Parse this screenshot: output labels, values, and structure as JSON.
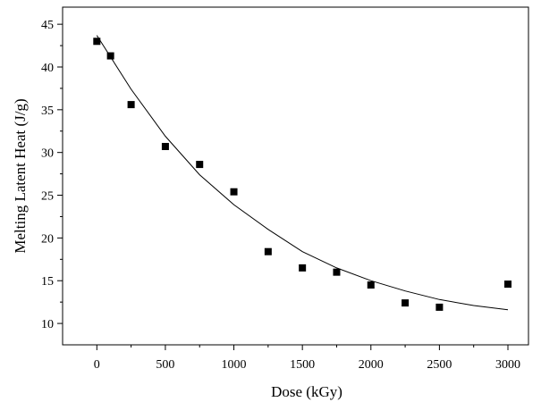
{
  "chart_data": {
    "type": "scatter",
    "title": "",
    "xlabel": "Dose (kGy)",
    "ylabel": "Melting Latent Heat (J/g)",
    "xlim": [
      -250,
      3150
    ],
    "ylim": [
      7.5,
      47
    ],
    "x_ticks": [
      0,
      500,
      1000,
      1500,
      2000,
      2500,
      3000
    ],
    "x_tick_labels": [
      "0",
      "500",
      "1000",
      "1500",
      "2000",
      "2500",
      "3000"
    ],
    "y_ticks": [
      10,
      15,
      20,
      25,
      30,
      35,
      40,
      45
    ],
    "y_tick_labels": [
      "10",
      "15",
      "20",
      "25",
      "30",
      "35",
      "40",
      "45"
    ],
    "grid": false,
    "legend": "none",
    "series": [
      {
        "marker": "square",
        "color": "#000000",
        "x": [
          0,
          100,
          250,
          500,
          750,
          1000,
          1250,
          1500,
          1750,
          2000,
          2250,
          2500,
          3000
        ],
        "y": [
          43.0,
          41.3,
          35.6,
          30.7,
          28.6,
          25.4,
          18.4,
          16.5,
          16.0,
          14.5,
          12.4,
          11.9,
          14.6
        ]
      }
    ],
    "fit_curve": {
      "type": "exponential decay",
      "color": "#000000",
      "x": [
        0,
        250,
        500,
        750,
        1000,
        1250,
        1500,
        1750,
        2000,
        2250,
        2500,
        2750,
        3000
      ],
      "y": [
        43.7,
        37.4,
        31.9,
        27.4,
        23.9,
        21.0,
        18.4,
        16.5,
        15.0,
        13.8,
        12.8,
        12.1,
        11.6
      ]
    }
  }
}
